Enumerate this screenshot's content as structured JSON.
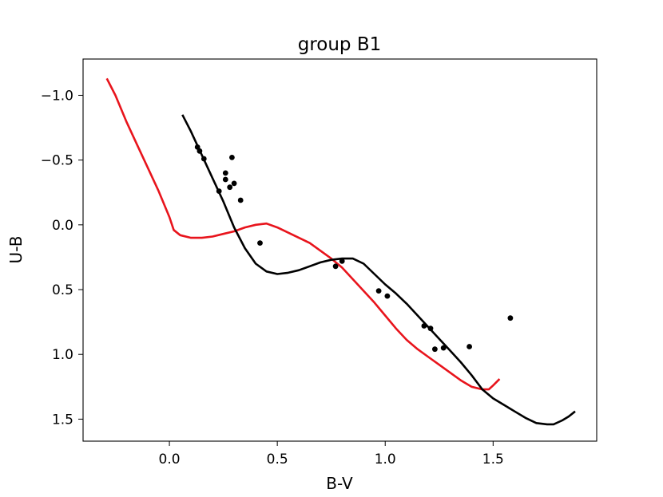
{
  "chart_data": {
    "type": "line",
    "title": "group B1",
    "xlabel": "B-V",
    "ylabel": "U-B",
    "xlim": [
      -0.4,
      1.98
    ],
    "ylim": [
      1.67,
      -1.28
    ],
    "y_inverted": true,
    "grid": false,
    "x_ticks": [
      0.0,
      0.5,
      1.0,
      1.5
    ],
    "x_tick_labels": [
      "0.0",
      "0.5",
      "1.0",
      "1.5"
    ],
    "y_ticks": [
      -1.0,
      -0.5,
      0.0,
      0.5,
      1.0,
      1.5
    ],
    "y_tick_labels": [
      "−1.0",
      "−0.5",
      "0.0",
      "0.5",
      "1.0",
      "1.5"
    ],
    "series": [
      {
        "kind": "line",
        "color": "#e8141c",
        "points": [
          [
            -0.29,
            -1.13
          ],
          [
            -0.25,
            -1.0
          ],
          [
            -0.2,
            -0.8
          ],
          [
            -0.15,
            -0.62
          ],
          [
            -0.1,
            -0.44
          ],
          [
            -0.05,
            -0.26
          ],
          [
            -0.02,
            -0.14
          ],
          [
            0.0,
            -0.06
          ],
          [
            0.02,
            0.04
          ],
          [
            0.05,
            0.08
          ],
          [
            0.1,
            0.1
          ],
          [
            0.15,
            0.1
          ],
          [
            0.2,
            0.09
          ],
          [
            0.25,
            0.07
          ],
          [
            0.3,
            0.05
          ],
          [
            0.35,
            0.02
          ],
          [
            0.4,
            0.0
          ],
          [
            0.45,
            -0.01
          ],
          [
            0.5,
            0.02
          ],
          [
            0.55,
            0.06
          ],
          [
            0.6,
            0.1
          ],
          [
            0.65,
            0.14
          ],
          [
            0.7,
            0.2
          ],
          [
            0.75,
            0.26
          ],
          [
            0.8,
            0.33
          ],
          [
            0.85,
            0.42
          ],
          [
            0.9,
            0.51
          ],
          [
            0.95,
            0.6
          ],
          [
            1.0,
            0.7
          ],
          [
            1.05,
            0.8
          ],
          [
            1.1,
            0.89
          ],
          [
            1.15,
            0.96
          ],
          [
            1.2,
            1.02
          ],
          [
            1.25,
            1.08
          ],
          [
            1.3,
            1.14
          ],
          [
            1.35,
            1.2
          ],
          [
            1.4,
            1.25
          ],
          [
            1.45,
            1.27
          ],
          [
            1.48,
            1.27
          ],
          [
            1.5,
            1.24
          ],
          [
            1.53,
            1.19
          ]
        ]
      },
      {
        "kind": "line",
        "color": "#000000",
        "points": [
          [
            0.06,
            -0.85
          ],
          [
            0.1,
            -0.72
          ],
          [
            0.15,
            -0.54
          ],
          [
            0.2,
            -0.36
          ],
          [
            0.25,
            -0.18
          ],
          [
            0.3,
            0.02
          ],
          [
            0.35,
            0.18
          ],
          [
            0.4,
            0.3
          ],
          [
            0.45,
            0.36
          ],
          [
            0.5,
            0.38
          ],
          [
            0.55,
            0.37
          ],
          [
            0.6,
            0.35
          ],
          [
            0.65,
            0.32
          ],
          [
            0.7,
            0.29
          ],
          [
            0.75,
            0.27
          ],
          [
            0.8,
            0.26
          ],
          [
            0.85,
            0.26
          ],
          [
            0.9,
            0.3
          ],
          [
            0.95,
            0.38
          ],
          [
            1.0,
            0.46
          ],
          [
            1.05,
            0.53
          ],
          [
            1.1,
            0.61
          ],
          [
            1.15,
            0.7
          ],
          [
            1.2,
            0.79
          ],
          [
            1.25,
            0.88
          ],
          [
            1.3,
            0.97
          ],
          [
            1.35,
            1.06
          ],
          [
            1.4,
            1.16
          ],
          [
            1.45,
            1.27
          ],
          [
            1.5,
            1.34
          ],
          [
            1.55,
            1.39
          ],
          [
            1.6,
            1.44
          ],
          [
            1.65,
            1.49
          ],
          [
            1.7,
            1.53
          ],
          [
            1.75,
            1.54
          ],
          [
            1.78,
            1.54
          ],
          [
            1.82,
            1.51
          ],
          [
            1.85,
            1.48
          ],
          [
            1.88,
            1.44
          ]
        ]
      },
      {
        "kind": "scatter",
        "color": "#000000",
        "points": [
          [
            0.13,
            -0.6
          ],
          [
            0.14,
            -0.57
          ],
          [
            0.16,
            -0.51
          ],
          [
            0.23,
            -0.26
          ],
          [
            0.26,
            -0.4
          ],
          [
            0.26,
            -0.35
          ],
          [
            0.28,
            -0.29
          ],
          [
            0.29,
            -0.52
          ],
          [
            0.3,
            -0.32
          ],
          [
            0.33,
            -0.19
          ],
          [
            0.42,
            0.14
          ],
          [
            0.77,
            0.32
          ],
          [
            0.8,
            0.28
          ],
          [
            0.97,
            0.51
          ],
          [
            1.01,
            0.55
          ],
          [
            1.18,
            0.78
          ],
          [
            1.21,
            0.8
          ],
          [
            1.23,
            0.96
          ],
          [
            1.27,
            0.95
          ],
          [
            1.39,
            0.94
          ],
          [
            1.58,
            0.72
          ]
        ]
      }
    ]
  }
}
